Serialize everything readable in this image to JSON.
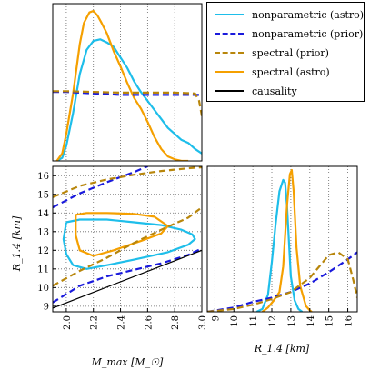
{
  "colors": {
    "astro_nonparam": "#1ebeea",
    "prior_nonparam": "#1a1adc",
    "prior_spectral": "#b8860b",
    "astro_spectral": "#f5a000",
    "causality": "#000000"
  },
  "legend": {
    "placement": "top-right",
    "items": [
      {
        "label": "nonparametric (astro)",
        "color": "#1ebeea",
        "style": "solid"
      },
      {
        "label": "nonparametric (prior)",
        "color": "#1a1adc",
        "style": "dashed"
      },
      {
        "label": "spectral (prior)",
        "color": "#b8860b",
        "style": "dashed"
      },
      {
        "label": "spectral (astro)",
        "color": "#f5a000",
        "style": "solid"
      },
      {
        "label": "causality",
        "color": "#000000",
        "style": "solid"
      }
    ]
  },
  "chart_data": [
    {
      "type": "line",
      "panel": "Mmax-marginal",
      "xlim": [
        1.9,
        3.0
      ],
      "grid": true,
      "series": [
        {
          "name": "nonparametric (astro)",
          "x": [
            1.93,
            1.97,
            2.0,
            2.05,
            2.1,
            2.15,
            2.2,
            2.25,
            2.3,
            2.35,
            2.4,
            2.45,
            2.5,
            2.55,
            2.6,
            2.65,
            2.7,
            2.75,
            2.8,
            2.85,
            2.9,
            2.95,
            3.0
          ],
          "y": [
            0.0,
            0.02,
            0.1,
            0.32,
            0.58,
            0.74,
            0.8,
            0.81,
            0.79,
            0.76,
            0.69,
            0.62,
            0.53,
            0.46,
            0.4,
            0.34,
            0.28,
            0.22,
            0.18,
            0.14,
            0.12,
            0.08,
            0.05
          ]
        },
        {
          "name": "spectral (astro)",
          "x": [
            1.93,
            1.97,
            2.0,
            2.05,
            2.1,
            2.13,
            2.17,
            2.2,
            2.23,
            2.26,
            2.3,
            2.35,
            2.4,
            2.45,
            2.5,
            2.55,
            2.6,
            2.65,
            2.7,
            2.75,
            2.8,
            2.85,
            2.9
          ],
          "y": [
            0.0,
            0.05,
            0.18,
            0.45,
            0.78,
            0.92,
            0.99,
            1.0,
            0.97,
            0.92,
            0.85,
            0.73,
            0.63,
            0.52,
            0.42,
            0.35,
            0.26,
            0.16,
            0.08,
            0.03,
            0.01,
            0.0,
            0.0
          ]
        },
        {
          "name": "nonparametric (prior)",
          "x": [
            1.9,
            2.0,
            2.2,
            2.4,
            2.6,
            2.8,
            2.95,
            3.0
          ],
          "y": [
            0.46,
            0.46,
            0.45,
            0.44,
            0.44,
            0.44,
            0.44,
            0.44
          ]
        },
        {
          "name": "spectral (prior)",
          "x": [
            1.9,
            2.0,
            2.2,
            2.4,
            2.6,
            2.8,
            2.95,
            2.98,
            3.0
          ],
          "y": [
            0.465,
            0.465,
            0.46,
            0.455,
            0.455,
            0.455,
            0.45,
            0.4,
            0.3
          ]
        }
      ]
    },
    {
      "type": "line",
      "panel": "R14-vs-Mmax-contours",
      "xlabel": "M_max [M_☉]",
      "ylabel": "R_1.4 [km]",
      "xlim": [
        1.9,
        3.0
      ],
      "ylim": [
        8.7,
        16.5
      ],
      "xticks": [
        "2.0",
        "2.2",
        "2.4",
        "2.6",
        "2.8",
        "3.0"
      ],
      "yticks": [
        "9",
        "10",
        "11",
        "12",
        "13",
        "14",
        "15",
        "16"
      ],
      "grid": true,
      "series": [
        {
          "name": "nonparametric (astro)",
          "x": [
            2.0,
            2.1,
            2.3,
            2.5,
            2.7,
            2.85,
            2.93,
            2.95,
            2.9,
            2.75,
            2.5,
            2.3,
            2.15,
            2.05,
            2.0,
            1.98,
            2.0
          ],
          "y": [
            13.5,
            13.65,
            13.65,
            13.5,
            13.35,
            13.1,
            12.85,
            12.6,
            12.3,
            11.9,
            11.5,
            11.2,
            11.0,
            11.2,
            11.8,
            12.6,
            13.5
          ]
        },
        {
          "name": "spectral (astro)",
          "x": [
            2.07,
            2.15,
            2.3,
            2.5,
            2.65,
            2.75,
            2.7,
            2.55,
            2.35,
            2.2,
            2.1,
            2.07,
            2.07
          ],
          "y": [
            13.9,
            14.0,
            14.0,
            13.95,
            13.8,
            13.3,
            12.9,
            12.5,
            12.0,
            11.7,
            12.0,
            12.8,
            13.9
          ]
        },
        {
          "name": "nonparametric (prior)",
          "x": [
            1.9,
            2.1,
            2.3,
            2.5,
            2.6
          ],
          "y": [
            14.3,
            15.05,
            15.65,
            16.2,
            16.5
          ]
        },
        {
          "name": "nonparametric (prior)",
          "x": [
            1.9,
            2.1,
            2.3,
            2.5,
            2.7,
            2.9,
            3.0
          ],
          "y": [
            9.2,
            10.1,
            10.6,
            10.95,
            11.3,
            11.75,
            12.1
          ]
        },
        {
          "name": "spectral (prior)",
          "x": [
            1.9,
            2.1,
            2.3,
            2.5,
            2.7,
            2.9,
            3.0
          ],
          "y": [
            14.85,
            15.45,
            15.8,
            16.05,
            16.25,
            16.4,
            16.45
          ]
        },
        {
          "name": "spectral (prior)",
          "x": [
            1.9,
            2.1,
            2.3,
            2.5,
            2.7,
            2.9,
            3.0
          ],
          "y": [
            10.1,
            10.9,
            11.6,
            12.4,
            13.1,
            13.75,
            14.3
          ]
        },
        {
          "name": "causality",
          "x": [
            1.9,
            3.0
          ],
          "y": [
            8.9,
            12.0
          ]
        }
      ]
    },
    {
      "type": "line",
      "panel": "R14-marginal",
      "xlabel": "R_1.4 [km]",
      "xlim": [
        8.6,
        16.5
      ],
      "xticks": [
        "9",
        "10",
        "11",
        "12",
        "13",
        "14",
        "15",
        "16"
      ],
      "grid": true,
      "series": [
        {
          "name": "nonparametric (astro)",
          "x": [
            11.2,
            11.5,
            11.8,
            12.0,
            12.2,
            12.4,
            12.6,
            12.7,
            12.8,
            12.9,
            13.0,
            13.2,
            13.4,
            13.6
          ],
          "y": [
            0.0,
            0.02,
            0.12,
            0.35,
            0.62,
            0.85,
            0.93,
            0.91,
            0.75,
            0.5,
            0.25,
            0.08,
            0.02,
            0.0
          ]
        },
        {
          "name": "spectral (astro)",
          "x": [
            11.5,
            11.8,
            12.1,
            12.4,
            12.6,
            12.8,
            12.95,
            13.05,
            13.15,
            13.3,
            13.5,
            13.8,
            14.0,
            14.1
          ],
          "y": [
            0.0,
            0.03,
            0.08,
            0.14,
            0.32,
            0.75,
            0.97,
            1.0,
            0.85,
            0.45,
            0.18,
            0.04,
            0.01,
            0.0
          ]
        },
        {
          "name": "nonparametric (prior)",
          "x": [
            8.6,
            10,
            11,
            12,
            13,
            14,
            15,
            16,
            16.5
          ],
          "y": [
            0.0,
            0.03,
            0.07,
            0.1,
            0.14,
            0.2,
            0.28,
            0.37,
            0.42
          ]
        },
        {
          "name": "spectral (prior)",
          "x": [
            8.6,
            10,
            11,
            12,
            13,
            14,
            15,
            15.5,
            16,
            16.3,
            16.5
          ],
          "y": [
            0.0,
            0.02,
            0.05,
            0.09,
            0.14,
            0.24,
            0.4,
            0.42,
            0.37,
            0.22,
            0.1
          ]
        }
      ]
    }
  ]
}
